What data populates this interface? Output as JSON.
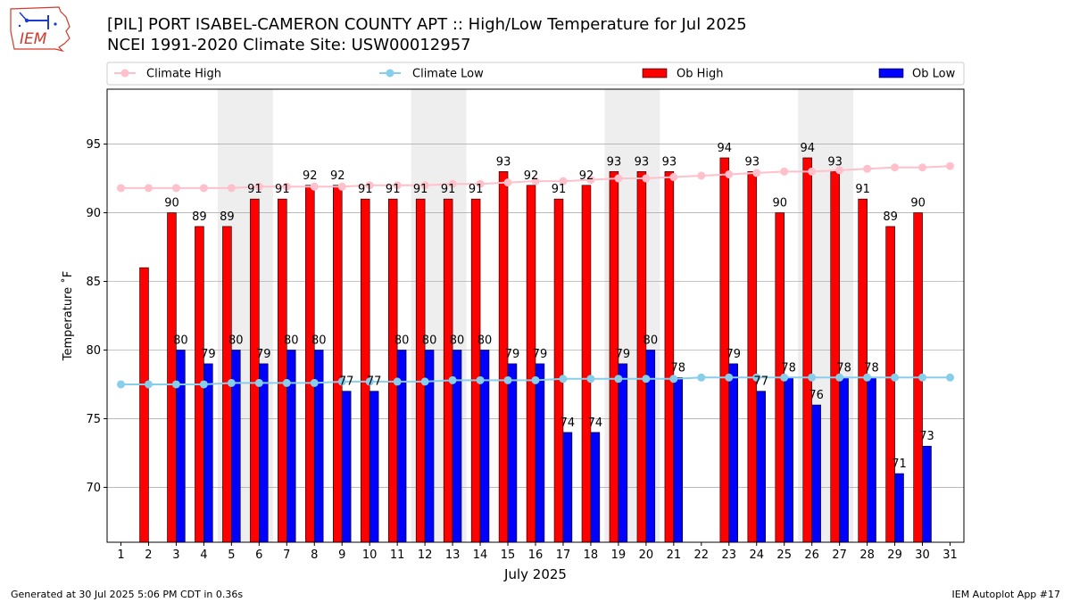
{
  "logo": {
    "text": "IEM",
    "color": "#d03a2b"
  },
  "title": {
    "line1": "[PIL] PORT ISABEL-CAMERON COUNTY APT :: High/Low Temperature for Jul 2025",
    "line2": "NCEI 1991-2020 Climate Site: USW00012957"
  },
  "footer": {
    "left": "Generated at 30 Jul 2025 5:06 PM CDT in 0.36s",
    "right": "IEM Autoplot App #17"
  },
  "chart_data": {
    "type": "bar",
    "xlabel": "July 2025",
    "ylabel": "Temperature ˚F",
    "xlim": [
      0.5,
      31.5
    ],
    "ylim": [
      66,
      99
    ],
    "yticks": [
      70,
      75,
      80,
      85,
      90,
      95
    ],
    "grid": "horizontal",
    "legend_position": "top",
    "weekend_shading": [
      [
        5,
        6
      ],
      [
        12,
        13
      ],
      [
        19,
        20
      ],
      [
        26,
        27
      ]
    ],
    "x": [
      1,
      2,
      3,
      4,
      5,
      6,
      7,
      8,
      9,
      10,
      11,
      12,
      13,
      14,
      15,
      16,
      17,
      18,
      19,
      20,
      21,
      22,
      23,
      24,
      25,
      26,
      27,
      28,
      29,
      30,
      31
    ],
    "series": [
      {
        "name": "Climate High",
        "kind": "line",
        "color": "#ffc0cb",
        "values": [
          91.8,
          91.8,
          91.8,
          91.8,
          91.8,
          91.9,
          91.9,
          91.9,
          91.9,
          92.0,
          92.0,
          92.0,
          92.1,
          92.1,
          92.2,
          92.3,
          92.3,
          92.4,
          92.5,
          92.5,
          92.6,
          92.7,
          92.8,
          92.9,
          93.0,
          93.0,
          93.1,
          93.2,
          93.3,
          93.3,
          93.4
        ]
      },
      {
        "name": "Climate Low",
        "kind": "line",
        "color": "#87ceeb",
        "values": [
          77.5,
          77.5,
          77.5,
          77.5,
          77.6,
          77.6,
          77.6,
          77.6,
          77.7,
          77.7,
          77.7,
          77.7,
          77.8,
          77.8,
          77.8,
          77.8,
          77.9,
          77.9,
          77.9,
          77.9,
          77.9,
          78.0,
          78.0,
          78.0,
          78.0,
          78.0,
          78.0,
          78.0,
          78.0,
          78.0,
          78.0
        ]
      },
      {
        "name": "Ob High",
        "kind": "bar",
        "color": "#ff0000",
        "values": [
          null,
          86,
          90,
          89,
          89,
          91,
          91,
          92,
          92,
          91,
          91,
          91,
          91,
          91,
          93,
          92,
          91,
          92,
          93,
          93,
          93,
          null,
          94,
          93,
          90,
          94,
          93,
          91,
          89,
          90,
          null
        ],
        "labels": [
          null,
          null,
          90,
          89,
          89,
          91,
          91,
          92,
          92,
          91,
          91,
          91,
          91,
          91,
          93,
          92,
          91,
          92,
          93,
          93,
          93,
          null,
          94,
          93,
          90,
          94,
          93,
          91,
          89,
          90,
          null
        ]
      },
      {
        "name": "Ob Low",
        "kind": "bar",
        "color": "#0000ff",
        "values": [
          null,
          null,
          80,
          79,
          80,
          79,
          80,
          80,
          77,
          77,
          80,
          80,
          80,
          80,
          79,
          79,
          74,
          74,
          79,
          80,
          78,
          null,
          79,
          77,
          78,
          76,
          78,
          78,
          71,
          73,
          null
        ],
        "labels": [
          null,
          null,
          80,
          79,
          80,
          79,
          80,
          80,
          77,
          77,
          80,
          80,
          80,
          80,
          79,
          79,
          74,
          74,
          79,
          80,
          78,
          null,
          79,
          77,
          78,
          76,
          78,
          78,
          71,
          73,
          null
        ]
      }
    ]
  }
}
